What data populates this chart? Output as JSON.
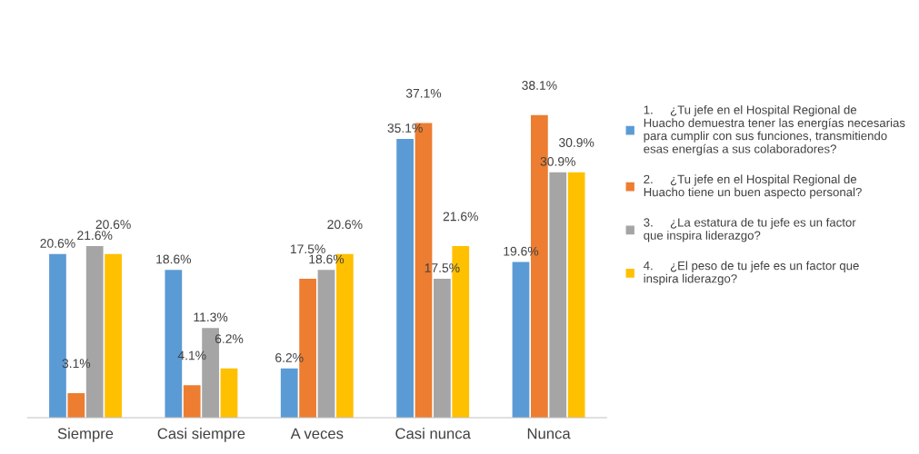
{
  "chart_data": {
    "type": "bar",
    "categories": [
      "Siempre",
      "Casi siempre",
      "A veces",
      "Casi nunca",
      "Nunca"
    ],
    "series": [
      {
        "name": "1.     ¿Tu jefe en el Hospital Regional de Huacho demuestra tener las energías necesarias para cumplir con sus funciones, transmitiendo esas energías a sus colaboradores?",
        "color": "#5b9bd5",
        "values": [
          20.6,
          18.6,
          6.2,
          35.1,
          19.6
        ],
        "value_labels": [
          "20.6%",
          "18.6%",
          "6.2%",
          "35.1%",
          "19.6%"
        ]
      },
      {
        "name": "2.     ¿Tu jefe en el Hospital Regional de Huacho tiene un buen aspecto personal?",
        "color": "#ed7d31",
        "values": [
          3.1,
          4.1,
          17.5,
          37.1,
          38.1
        ],
        "value_labels": [
          "3.1%",
          "4.1%",
          "17.5%",
          "37.1%",
          "38.1%"
        ]
      },
      {
        "name": "3.     ¿La estatura de tu jefe es un factor que inspira liderazgo?",
        "color": "#a5a5a5",
        "values": [
          21.6,
          11.3,
          18.6,
          17.5,
          30.9
        ],
        "value_labels": [
          "21.6%",
          "11.3%",
          "18.6%",
          "17.5%",
          "30.9%"
        ]
      },
      {
        "name": "4.     ¿El peso de tu jefe es un factor que inspira liderazgo?",
        "color": "#ffc000",
        "values": [
          20.6,
          6.2,
          20.6,
          21.6,
          30.9
        ],
        "value_labels": [
          "20.6%",
          "6.2%",
          "20.6%",
          "21.6%",
          "30.9%"
        ]
      }
    ],
    "legend": "right"
  }
}
